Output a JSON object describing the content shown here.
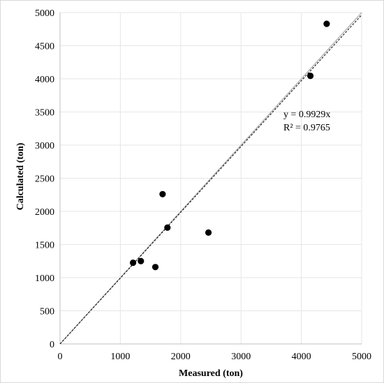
{
  "chart_data": {
    "type": "scatter",
    "title": "",
    "xlabel": "Measured (ton)",
    "ylabel": "Calculated (ton)",
    "xlim": [
      0,
      5000
    ],
    "ylim": [
      0,
      5000
    ],
    "x_ticks": [
      0,
      1000,
      2000,
      3000,
      4000,
      5000
    ],
    "y_ticks": [
      0,
      500,
      1000,
      1500,
      2000,
      2500,
      3000,
      3500,
      4000,
      4500,
      5000
    ],
    "grid": true,
    "legend": "none",
    "series": [
      {
        "points": [
          {
            "x": 1210,
            "y": 1225
          },
          {
            "x": 1340,
            "y": 1250
          },
          {
            "x": 1580,
            "y": 1160
          },
          {
            "x": 1700,
            "y": 2260
          },
          {
            "x": 1780,
            "y": 1755
          },
          {
            "x": 2460,
            "y": 1680
          },
          {
            "x": 4150,
            "y": 4045
          },
          {
            "x": 4420,
            "y": 4830
          }
        ],
        "marker_color": "#000000"
      }
    ],
    "trendline": {
      "slope": 0.9929,
      "style": "dashed",
      "color": "#000000"
    },
    "reference_line": {
      "slope": 1,
      "style": "solid",
      "color": "#a6a6a6"
    },
    "annotations": {
      "equation": "y = 0.9929x",
      "r_squared": "R² = 0.9765"
    }
  }
}
